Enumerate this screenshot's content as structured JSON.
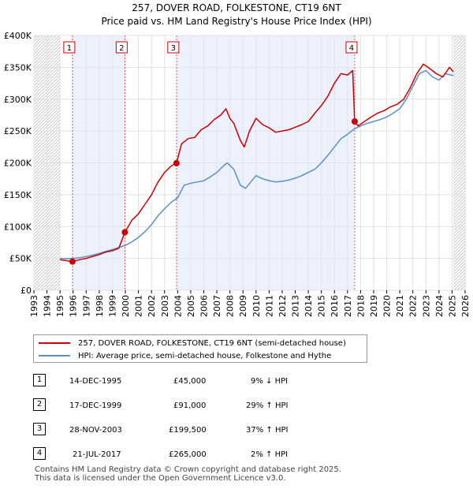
{
  "chart_data": {
    "type": "line",
    "title": "257, DOVER ROAD, FOLKESTONE, CT19 6NT",
    "subtitle": "Price paid vs. HM Land Registry's House Price Index (HPI)",
    "xlim": [
      1993,
      2026
    ],
    "ylim": [
      0,
      400000
    ],
    "x_ticks": [
      1993,
      1994,
      1995,
      1996,
      1997,
      1998,
      1999,
      2000,
      2001,
      2002,
      2003,
      2004,
      2005,
      2006,
      2007,
      2008,
      2009,
      2010,
      2011,
      2012,
      2013,
      2014,
      2015,
      2016,
      2017,
      2018,
      2019,
      2020,
      2021,
      2022,
      2023,
      2024,
      2025,
      2026
    ],
    "y_ticks": [
      {
        "value": 0,
        "label": "£0"
      },
      {
        "value": 50000,
        "label": "£50K"
      },
      {
        "value": 100000,
        "label": "£100K"
      },
      {
        "value": 150000,
        "label": "£150K"
      },
      {
        "value": 200000,
        "label": "£200K"
      },
      {
        "value": 250000,
        "label": "£250K"
      },
      {
        "value": 300000,
        "label": "£300K"
      },
      {
        "value": 350000,
        "label": "£350K"
      },
      {
        "value": 400000,
        "label": "£400K"
      }
    ],
    "hatched_before": 1995.0,
    "hatched_after": 2025.1,
    "shaded_spans": [
      [
        1995.95,
        1999.96
      ],
      [
        2003.91,
        2017.55
      ]
    ],
    "series": [
      {
        "name": "257, DOVER ROAD, FOLKESTONE, CT19 6NT (semi-detached house)",
        "color": "#cc0000",
        "x": [
          1995.0,
          1995.95,
          1996.5,
          1997.0,
          1997.5,
          1998.0,
          1998.5,
          1999.0,
          1999.5,
          1999.96,
          2000.5,
          2001.0,
          2001.5,
          2002.0,
          2002.5,
          2003.0,
          2003.5,
          2003.91,
          2004.3,
          2004.8,
          2005.3,
          2005.8,
          2006.3,
          2006.8,
          2007.3,
          2007.7,
          2008.0,
          2008.3,
          2008.8,
          2009.1,
          2009.5,
          2010.0,
          2010.5,
          2011.0,
          2011.5,
          2012.0,
          2012.5,
          2013.0,
          2013.5,
          2014.0,
          2014.5,
          2015.0,
          2015.5,
          2016.0,
          2016.5,
          2017.0,
          2017.4,
          2017.55,
          2017.8,
          2018.3,
          2018.8,
          2019.3,
          2019.8,
          2020.3,
          2020.8,
          2021.3,
          2021.8,
          2022.3,
          2022.8,
          2023.3,
          2023.8,
          2024.3,
          2024.8,
          2025.1
        ],
        "y": [
          48000,
          45000,
          48000,
          50000,
          53000,
          56000,
          60000,
          62000,
          66000,
          91000,
          110000,
          120000,
          135000,
          150000,
          170000,
          185000,
          195000,
          199500,
          230000,
          238000,
          240000,
          252000,
          258000,
          268000,
          275000,
          285000,
          270000,
          262000,
          235000,
          225000,
          250000,
          270000,
          260000,
          255000,
          248000,
          250000,
          252000,
          256000,
          260000,
          265000,
          278000,
          290000,
          305000,
          325000,
          340000,
          338000,
          345000,
          265000,
          258000,
          265000,
          272000,
          278000,
          282000,
          288000,
          292000,
          300000,
          318000,
          340000,
          355000,
          348000,
          340000,
          335000,
          350000,
          343000
        ]
      },
      {
        "name": "HPI: Average price, semi-detached house, Folkestone and Hythe",
        "color": "#5b8fc7",
        "x": [
          1995.0,
          1995.5,
          1996.0,
          1996.5,
          1997.0,
          1997.5,
          1998.0,
          1998.5,
          1999.0,
          1999.5,
          2000.0,
          2000.5,
          2001.0,
          2001.5,
          2002.0,
          2002.5,
          2003.0,
          2003.5,
          2004.0,
          2004.5,
          2005.0,
          2005.5,
          2006.0,
          2006.5,
          2007.0,
          2007.5,
          2007.8,
          2008.3,
          2008.8,
          2009.2,
          2009.6,
          2010.0,
          2010.5,
          2011.0,
          2011.5,
          2012.0,
          2012.5,
          2013.0,
          2013.5,
          2014.0,
          2014.5,
          2015.0,
          2015.5,
          2016.0,
          2016.5,
          2017.0,
          2017.5,
          2018.0,
          2018.5,
          2019.0,
          2019.5,
          2020.0,
          2020.5,
          2021.0,
          2021.5,
          2022.0,
          2022.5,
          2023.0,
          2023.5,
          2024.0,
          2024.5,
          2025.1
        ],
        "y": [
          50000,
          49500,
          50000,
          51000,
          53000,
          55000,
          58000,
          61000,
          64000,
          67000,
          70500,
          76000,
          83000,
          92000,
          103000,
          117000,
          128000,
          138000,
          145000,
          165000,
          168000,
          170000,
          172000,
          178000,
          185000,
          195000,
          200000,
          190000,
          165000,
          160000,
          170000,
          180000,
          175000,
          172000,
          170000,
          171000,
          173000,
          176000,
          180000,
          185000,
          190000,
          200000,
          212000,
          225000,
          238000,
          245000,
          253000,
          258000,
          262000,
          265000,
          268000,
          272000,
          278000,
          285000,
          300000,
          320000,
          340000,
          345000,
          335000,
          330000,
          340000,
          337000
        ]
      }
    ],
    "sale_markers": [
      {
        "label": "1",
        "x": 1995.95,
        "y": 45000
      },
      {
        "label": "2",
        "x": 1999.96,
        "y": 91000
      },
      {
        "label": "3",
        "x": 2003.91,
        "y": 199500
      },
      {
        "label": "4",
        "x": 2017.55,
        "y": 265000
      }
    ]
  },
  "legend": {
    "property_label": "257, DOVER ROAD, FOLKESTONE, CT19 6NT (semi-detached house)",
    "hpi_label": "HPI: Average price, semi-detached house, Folkestone and Hythe",
    "property_color": "#cc0000",
    "hpi_color": "#5b8fc7"
  },
  "sales": [
    {
      "num": "1",
      "date": "14-DEC-1995",
      "price": "£45,000",
      "hpi": "9% ↓ HPI"
    },
    {
      "num": "2",
      "date": "17-DEC-1999",
      "price": "£91,000",
      "hpi": "29% ↑ HPI"
    },
    {
      "num": "3",
      "date": "28-NOV-2003",
      "price": "£199,500",
      "hpi": "37% ↑ HPI"
    },
    {
      "num": "4",
      "date": "21-JUL-2017",
      "price": "£265,000",
      "hpi": "2% ↑ HPI"
    }
  ],
  "footer": {
    "line1": "Contains HM Land Registry data © Crown copyright and database right 2025.",
    "line2": "This data is licensed under the Open Government Licence v3.0."
  }
}
